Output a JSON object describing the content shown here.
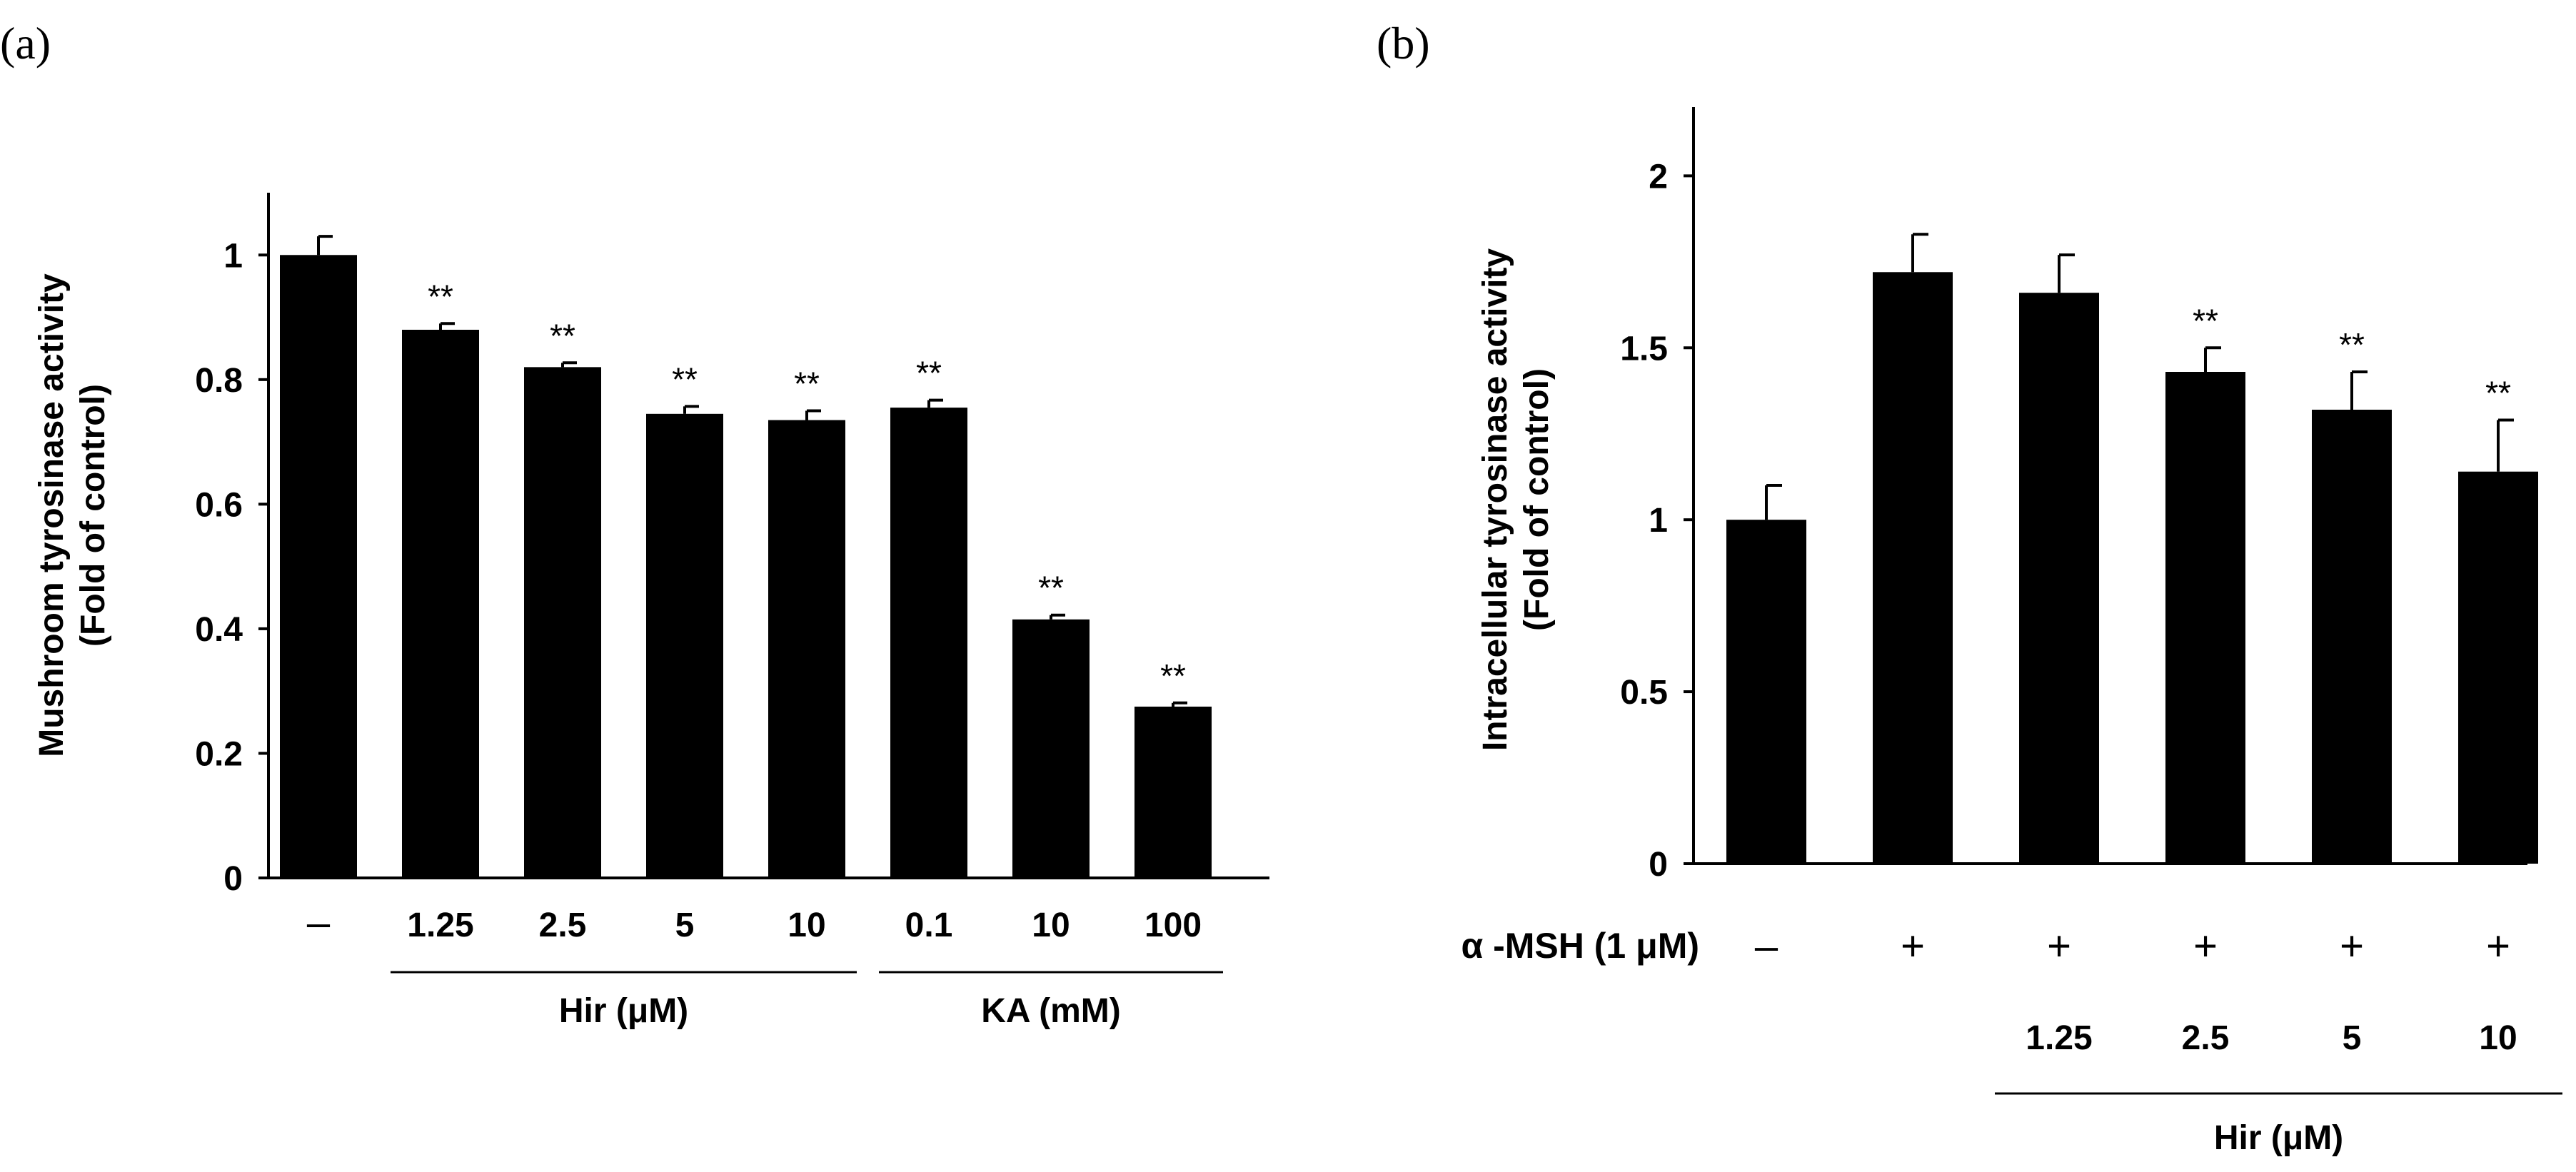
{
  "colors": {
    "bar": "#000000",
    "axis": "#000000",
    "background": "#ffffff"
  },
  "chart_data": [
    {
      "panel_label": "(a)",
      "type": "bar",
      "ylabel_line1": "Mushroom tyrosinase activity",
      "ylabel_line2": "(Fold of control)",
      "xlabel": "",
      "ylim": [
        0,
        1.1
      ],
      "yticks": [
        0,
        0.2,
        0.4,
        0.6,
        0.8,
        1
      ],
      "ytick_labels": [
        "0",
        "0.2",
        "0.4",
        "0.6",
        "0.8",
        "1"
      ],
      "categories": [
        "–",
        "1.25",
        "2.5",
        "5",
        "10",
        "0.1",
        "10",
        "100"
      ],
      "values": [
        1.0,
        0.88,
        0.82,
        0.745,
        0.735,
        0.755,
        0.415,
        0.275
      ],
      "errors": [
        0.03,
        0.01,
        0.007,
        0.012,
        0.015,
        0.012,
        0.007,
        0.006
      ],
      "significance": [
        "",
        "**",
        "**",
        "**",
        "**",
        "**",
        "**",
        "**"
      ],
      "groups": [
        {
          "label": "Hir (μM)",
          "start": 1,
          "end": 4
        },
        {
          "label": "KA (mM)",
          "start": 5,
          "end": 7
        }
      ]
    },
    {
      "panel_label": "(b)",
      "type": "bar",
      "ylabel_line1": "Intracellular tyrosinase activity",
      "ylabel_line2": "(Fold of control)",
      "xlabel": "",
      "ylim": [
        0,
        2.2
      ],
      "yticks": [
        0,
        0.5,
        1,
        1.5,
        2
      ],
      "ytick_labels": [
        "0",
        "0.5",
        "1",
        "1.5",
        "2"
      ],
      "row1_label": "α -MSH (1 μM)",
      "categories_row1": [
        "–",
        "+",
        "+",
        "+",
        "+",
        "+"
      ],
      "categories_row2": [
        "",
        "",
        "1.25",
        "2.5",
        "5",
        "10"
      ],
      "values": [
        1.0,
        1.72,
        1.66,
        1.43,
        1.32,
        1.14
      ],
      "errors": [
        0.1,
        0.11,
        0.11,
        0.07,
        0.11,
        0.15
      ],
      "significance": [
        "",
        "",
        "",
        "**",
        "**",
        "**"
      ],
      "groups": [
        {
          "label": "Hir (μM)",
          "start": 2,
          "end": 5
        }
      ]
    }
  ]
}
